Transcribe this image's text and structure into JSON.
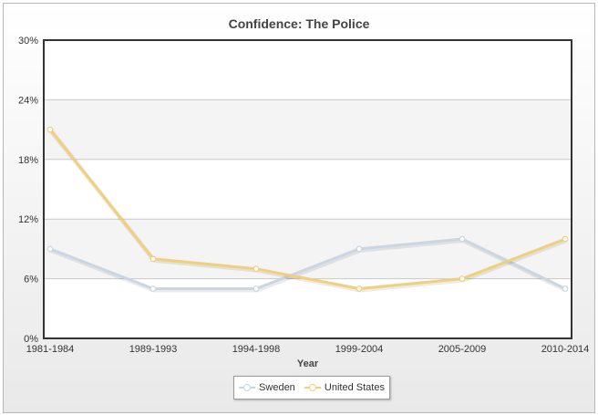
{
  "chart_data": {
    "type": "line",
    "title": "Confidence: The Police",
    "xlabel": "Year",
    "ylabel": "",
    "categories": [
      "1981-1984",
      "1989-1993",
      "1994-1998",
      "1999-2004",
      "2005-2009",
      "2010-2014"
    ],
    "yticks": [
      "0%",
      "6%",
      "12%",
      "18%",
      "24%",
      "30%"
    ],
    "ylim": [
      0,
      30
    ],
    "grid": true,
    "legend_position": "bottom",
    "series": [
      {
        "name": "Sweden",
        "color": "#c9d6e3",
        "values": [
          9,
          5,
          5,
          9,
          10,
          5
        ]
      },
      {
        "name": "United States",
        "color": "#f2cf7a",
        "values": [
          21,
          8,
          7,
          5,
          6,
          10
        ]
      }
    ]
  }
}
